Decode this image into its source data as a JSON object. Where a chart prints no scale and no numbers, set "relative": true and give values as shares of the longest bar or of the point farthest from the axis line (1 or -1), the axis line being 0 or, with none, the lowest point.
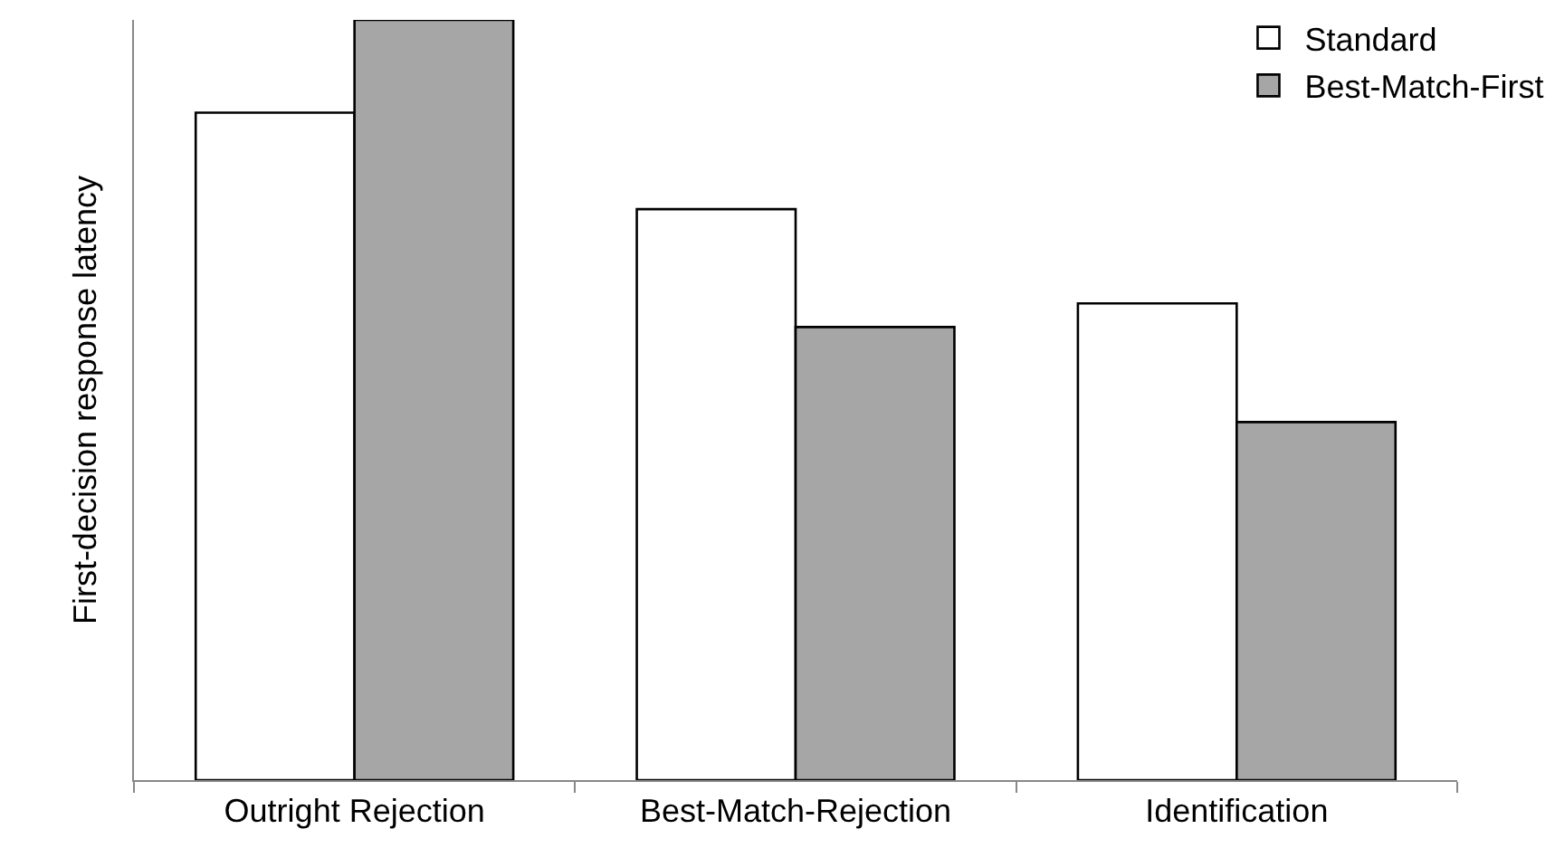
{
  "chart_data": {
    "type": "bar",
    "relative": true,
    "ylabel": "First-decision response latency",
    "categories": [
      "Outright Rejection",
      "Best-Match-Rejection",
      "Identification"
    ],
    "series": [
      {
        "name": "Standard",
        "color": "#ffffff",
        "values": [
          0.878,
          0.751,
          0.627
        ]
      },
      {
        "name": "Best-Match-First",
        "color": "#a6a6a6",
        "values": [
          1,
          0.596,
          0.471
        ]
      }
    ],
    "legend": "top right",
    "grid": false
  }
}
